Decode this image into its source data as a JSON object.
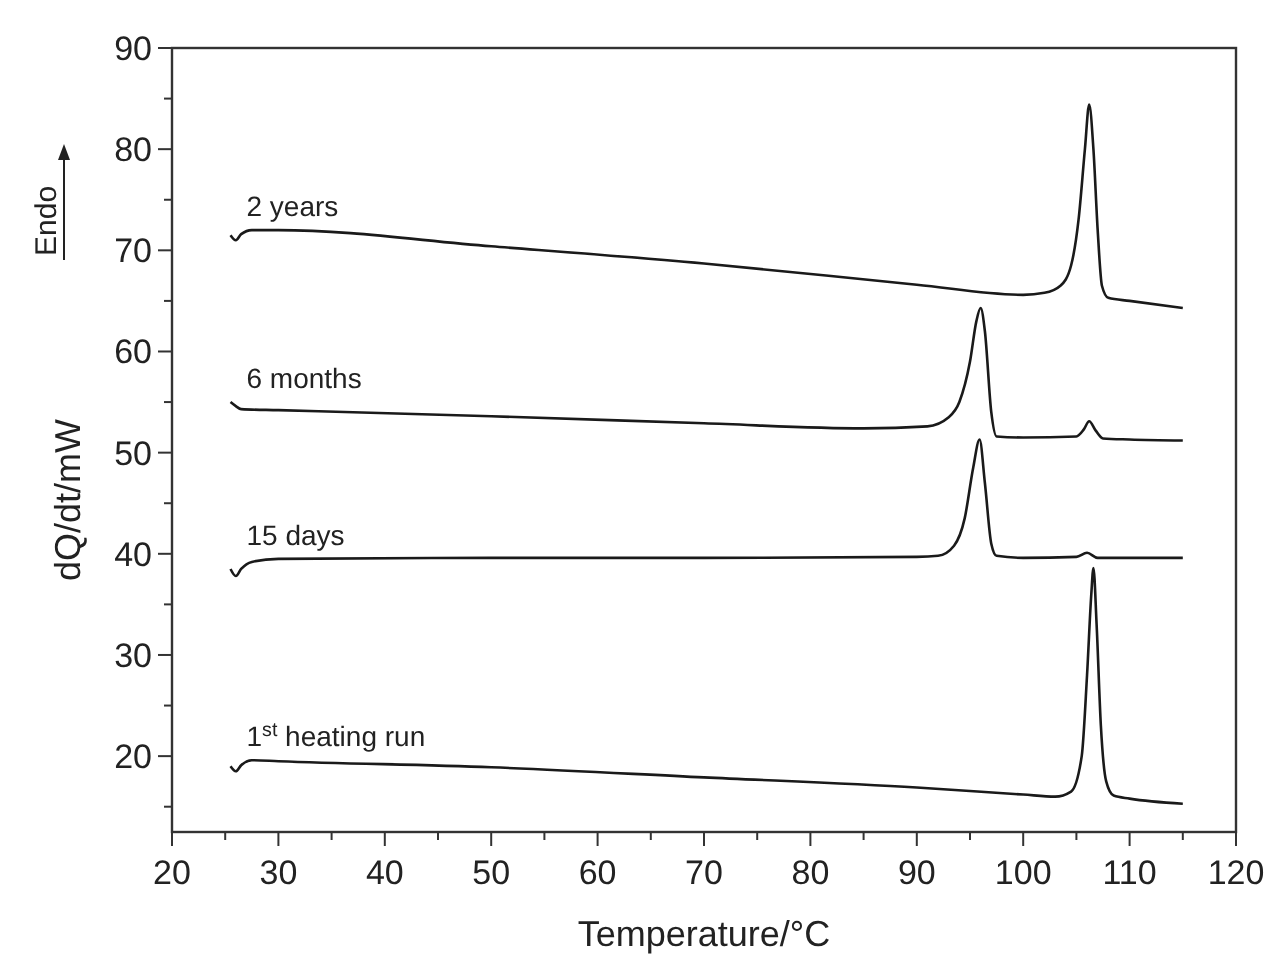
{
  "chart_data": {
    "type": "line",
    "xlabel": "Temperature/°C",
    "ylabel": "dQ/dt/mW",
    "annotations": [
      "Endo"
    ],
    "xlim": [
      20,
      120
    ],
    "xticks": [
      20,
      30,
      40,
      50,
      60,
      70,
      80,
      90,
      100,
      110,
      120
    ],
    "ylim": [
      12.5,
      90
    ],
    "yticks": [
      20,
      30,
      40,
      50,
      60,
      70,
      80,
      90
    ],
    "grid": false,
    "color": "#1a1a1a",
    "line_style": "solid",
    "marker": "none",
    "series": [
      {
        "name": "2 years",
        "x": [
          25.5,
          26,
          26.5,
          27.5,
          30,
          50,
          70,
          90,
          100,
          102,
          103.5,
          104.5,
          105.2,
          105.8,
          106.2,
          106.6,
          107,
          107.4,
          108,
          110,
          115
        ],
        "values": [
          71.5,
          71,
          71.6,
          72,
          72,
          70.4,
          68.7,
          66.6,
          65.6,
          65.8,
          66.5,
          68.5,
          73,
          80,
          84.4,
          80,
          72,
          66.5,
          65.3,
          65,
          64.3
        ]
      },
      {
        "name": "6 months",
        "x": [
          25.5,
          26,
          26.5,
          30,
          50,
          70,
          85,
          91,
          93,
          94,
          95,
          95.6,
          96,
          96.4,
          97,
          97.5,
          100,
          105,
          105.7,
          106.2,
          106.8,
          107.5,
          110,
          115
        ],
        "values": [
          55,
          54.6,
          54.3,
          54.2,
          53.6,
          52.9,
          52.4,
          52.6,
          53.5,
          55,
          59,
          63,
          64.3,
          62,
          54,
          51.6,
          51.5,
          51.6,
          52.3,
          53.1,
          52.2,
          51.4,
          51.3,
          51.2
        ]
      },
      {
        "name": "15 days",
        "x": [
          25.5,
          26,
          26.5,
          27.5,
          30,
          50,
          70,
          90,
          92,
          93.5,
          94.5,
          95.3,
          95.9,
          96.4,
          97,
          97.5,
          100,
          105,
          106,
          107,
          110,
          115
        ],
        "values": [
          38.5,
          37.8,
          38.5,
          39.2,
          39.5,
          39.6,
          39.6,
          39.7,
          39.8,
          40.8,
          43.5,
          48.5,
          51.3,
          47,
          41,
          39.8,
          39.6,
          39.7,
          40.1,
          39.6,
          39.6,
          39.6
        ]
      },
      {
        "name": "1$^{st}$ heating run",
        "x": [
          25.5,
          26,
          26.5,
          27.5,
          30,
          50,
          70,
          90,
          100,
          103,
          104.5,
          105.5,
          106,
          106.4,
          106.6,
          106.9,
          107.3,
          107.8,
          108.5,
          110,
          115
        ],
        "values": [
          19,
          18.5,
          19.1,
          19.6,
          19.5,
          18.9,
          17.9,
          16.9,
          16.2,
          16,
          16.5,
          20,
          28,
          36,
          38.6,
          33,
          23,
          17.5,
          16.1,
          15.8,
          15.3
        ]
      }
    ]
  }
}
